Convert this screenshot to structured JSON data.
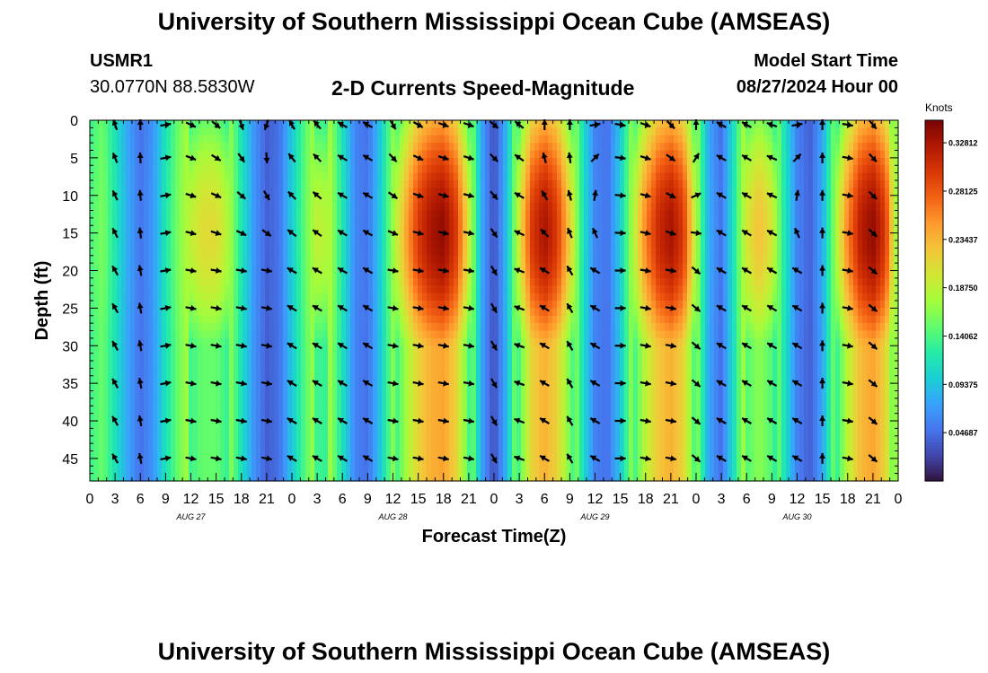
{
  "page": {
    "title_top": "University of Southern Mississippi Ocean Cube (AMSEAS)",
    "title_bottom": "University of Southern Mississippi Ocean Cube (AMSEAS)",
    "station_id": "USMR1",
    "station_coords": "30.0770N  88.5830W",
    "subtitle": "2-D Currents Speed-Magnitude",
    "model_start_label": "Model Start Time",
    "model_start_value": "08/27/2024 Hour 00"
  },
  "chart_data": {
    "type": "heatmap",
    "title": "2-D Currents Speed-Magnitude",
    "xlabel": "Forecast Time(Z)",
    "ylabel": "Depth (ft)",
    "x_tick_labels": [
      "0",
      "3",
      "6",
      "9",
      "12",
      "15",
      "18",
      "21",
      "0",
      "3",
      "6",
      "9",
      "12",
      "15",
      "18",
      "21",
      "0",
      "3",
      "6",
      "9",
      "12",
      "15",
      "18",
      "21",
      "0",
      "3",
      "6",
      "9",
      "12",
      "15",
      "18",
      "21",
      "0"
    ],
    "x_hours_range": [
      0,
      96
    ],
    "date_labels": [
      {
        "label": "AUG 27",
        "hour": 12
      },
      {
        "label": "AUG 28",
        "hour": 36
      },
      {
        "label": "AUG 29",
        "hour": 60
      },
      {
        "label": "AUG 30",
        "hour": 84
      }
    ],
    "y_ticks": [
      0,
      5,
      10,
      15,
      20,
      25,
      30,
      35,
      40,
      45
    ],
    "ylim": [
      0,
      48
    ],
    "y_inverted": true,
    "colorbar": {
      "label": "Knots",
      "range": [
        0.0,
        0.35
      ],
      "ticks": [
        0.04687,
        0.09375,
        0.14062,
        0.1875,
        0.23437,
        0.28125,
        0.32812
      ],
      "tick_labels": [
        "0.04687",
        "0.09375",
        "0.14062",
        "0.18750",
        "0.23437",
        "0.28125",
        "0.32812"
      ],
      "colormap": [
        "#30123b",
        "#4145ab",
        "#4675ed",
        "#39a2fc",
        "#1bcfd4",
        "#24eca6",
        "#61fc6c",
        "#a4fc3b",
        "#d1e834",
        "#f3c63a",
        "#fe9b2d",
        "#f36315",
        "#d93806",
        "#b11901",
        "#7a0402"
      ]
    },
    "speed_profile_hours": [
      0,
      1.5,
      3,
      4.5,
      6,
      7.5,
      9,
      10.5,
      12,
      13.5,
      15,
      16.5,
      18,
      19.5,
      21,
      22.5,
      24,
      25.5,
      27,
      28.5,
      30,
      31.5,
      33,
      34.5,
      36,
      37.5,
      39,
      40.5,
      42,
      43.5,
      45,
      46.5,
      48,
      49.5,
      51,
      52.5,
      54,
      55.5,
      57,
      58.5,
      60,
      61.5,
      63,
      64.5,
      66,
      67.5,
      69,
      70.5,
      72,
      73.5,
      75,
      76.5,
      78,
      79.5,
      81,
      82.5,
      84,
      85.5,
      87,
      88.5,
      90,
      91.5,
      93,
      94.5,
      96
    ],
    "speed_mid_depth_knots": [
      0.14,
      0.16,
      0.12,
      0.08,
      0.05,
      0.07,
      0.12,
      0.16,
      0.19,
      0.21,
      0.21,
      0.18,
      0.12,
      0.07,
      0.04,
      0.05,
      0.1,
      0.15,
      0.19,
      0.18,
      0.12,
      0.06,
      0.05,
      0.1,
      0.17,
      0.24,
      0.3,
      0.33,
      0.34,
      0.3,
      0.2,
      0.08,
      0.03,
      0.09,
      0.2,
      0.3,
      0.33,
      0.3,
      0.22,
      0.12,
      0.06,
      0.05,
      0.1,
      0.18,
      0.26,
      0.31,
      0.33,
      0.3,
      0.18,
      0.08,
      0.05,
      0.12,
      0.2,
      0.23,
      0.2,
      0.12,
      0.06,
      0.04,
      0.08,
      0.17,
      0.26,
      0.32,
      0.34,
      0.3,
      0.15
    ],
    "arrow_hours": [
      3,
      6,
      9,
      12,
      15,
      18,
      21,
      24,
      27,
      30,
      33,
      36,
      39,
      42,
      45,
      48,
      51,
      54,
      57,
      60,
      63,
      66,
      69,
      72,
      75,
      78,
      81,
      84,
      87,
      90,
      93
    ],
    "arrow_depths_ft": [
      0,
      5,
      10,
      15,
      20,
      25,
      30,
      35,
      40,
      45
    ],
    "arrow_direction_deg_at_surface": [
      340,
      0,
      80,
      115,
      130,
      160,
      200,
      330,
      320,
      300,
      300,
      150,
      120,
      110,
      110,
      130,
      310,
      0,
      0,
      80,
      100,
      110,
      135,
      0,
      300,
      300,
      290,
      80,
      0,
      100,
      140
    ],
    "arrow_direction_deg_at_depth": [
      330,
      350,
      80,
      100,
      100,
      100,
      100,
      300,
      300,
      300,
      300,
      100,
      100,
      100,
      100,
      150,
      290,
      300,
      330,
      300,
      90,
      100,
      100,
      130,
      300,
      300,
      300,
      300,
      0,
      100,
      130
    ]
  }
}
